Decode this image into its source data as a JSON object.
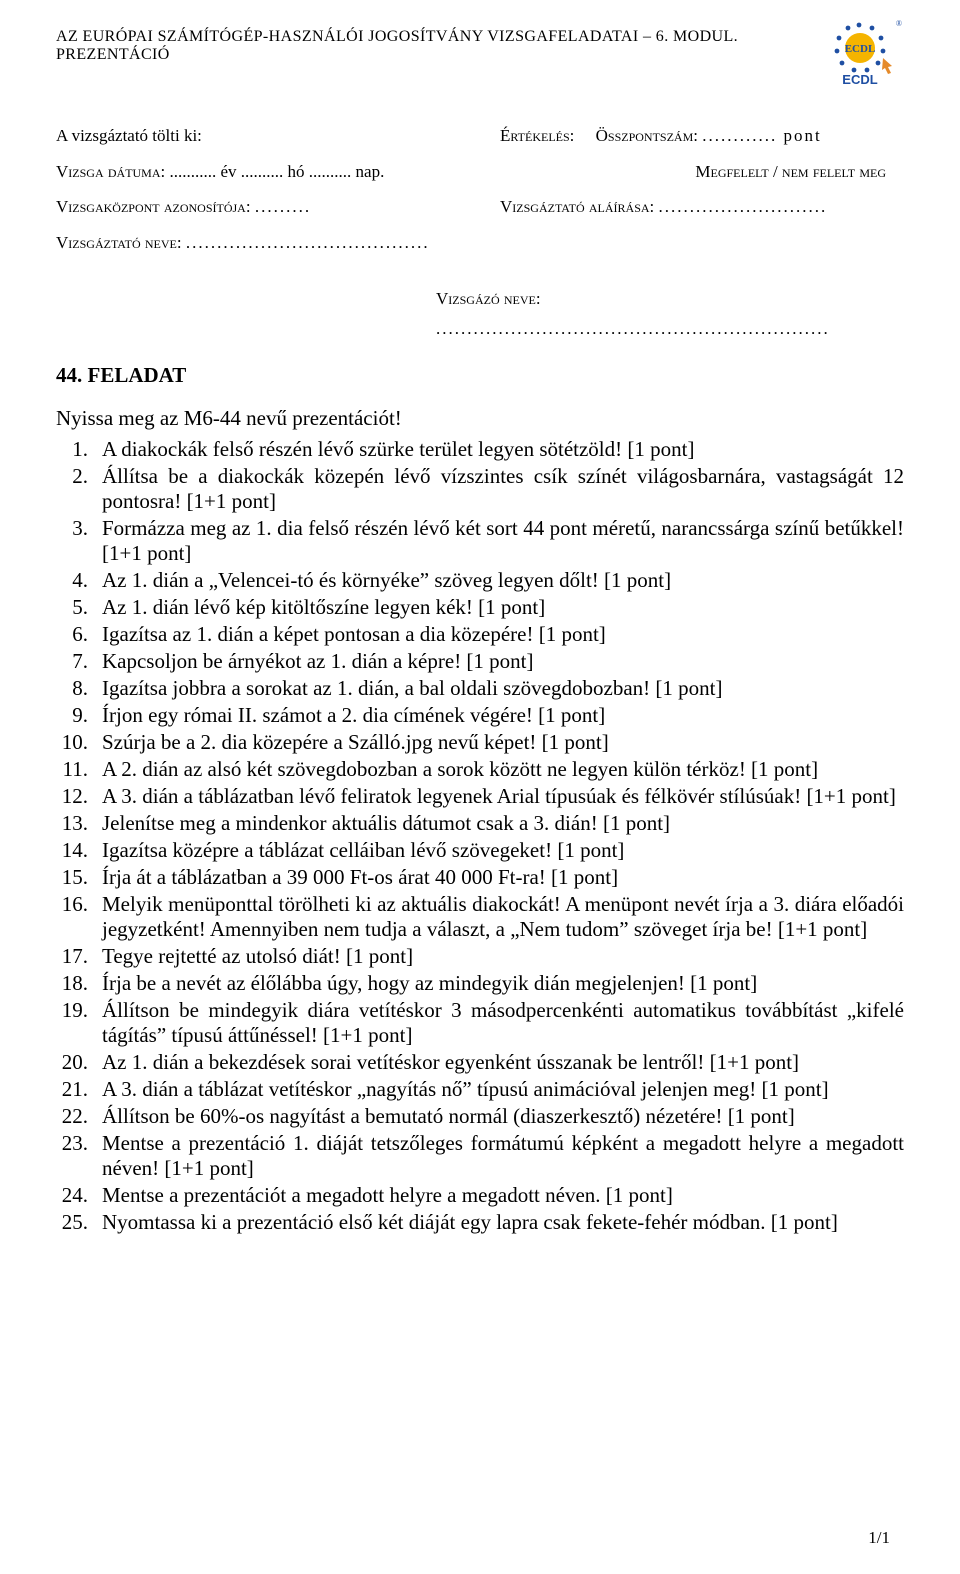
{
  "header": {
    "title": "AZ EURÓPAI SZÁMÍTÓGÉP-HASZNÁLÓI JOGOSÍTVÁNY VIZSGAFELADATAI – 6. MODUL. PREZENTÁCIÓ",
    "logo_label": "ECDL"
  },
  "meta_left": {
    "proctor_fills": "A vizsgáztató tölti ki:",
    "exam_date_label": "Vizsga dátuma:",
    "exam_date_tail": "........... év .......... hó .......... nap.",
    "center_label": "Vizsgaközpont azonosítója:",
    "center_dots": ".........",
    "proctor_label": "Vizsgáztató neve:",
    "proctor_dots": "......................................."
  },
  "meta_right": {
    "eval_label": "Értékelés:",
    "total_label": "Összpontszám:",
    "total_dots": "............ pont",
    "passfail": "Megfelelt / nem felelt meg",
    "sig_label": "Vizsgáztató aláírása:",
    "sig_dots": "..........................."
  },
  "examinee": {
    "label": "Vizsgázó neve:",
    "dots": "..............................................................."
  },
  "task": {
    "title": "44. FELADAT",
    "intro": "Nyissa meg az M6-44 nevű prezentációt!",
    "items": [
      "A diakockák felső részén lévő szürke terület legyen sötétzöld! [1 pont]",
      "Állítsa be a diakockák közepén lévő vízszintes csík színét világosbarnára, vastagságát 12 pontosra! [1+1 pont]",
      "Formázza meg az 1. dia felső részén lévő két sort 44 pont méretű, narancssárga színű betűkkel! [1+1 pont]",
      "Az 1. dián a „Velencei-tó és környéke” szöveg legyen dőlt! [1 pont]",
      "Az 1. dián lévő kép kitöltőszíne legyen kék! [1 pont]",
      "Igazítsa az 1. dián a képet pontosan a dia közepére! [1 pont]",
      "Kapcsoljon be árnyékot az 1. dián a képre! [1 pont]",
      "Igazítsa jobbra a sorokat az 1. dián, a bal oldali szövegdobozban! [1 pont]",
      "Írjon egy római II. számot a 2. dia címének végére! [1 pont]",
      "Szúrja be a 2. dia közepére a Szálló.jpg nevű képet! [1 pont]",
      "A 2. dián az alsó két szövegdobozban a sorok között ne legyen külön térköz! [1 pont]",
      "A 3. dián a táblázatban lévő feliratok legyenek Arial típusúak és félkövér stílúsúak! [1+1 pont]",
      "Jelenítse meg a mindenkor aktuális dátumot csak a 3. dián! [1 pont]",
      "Igazítsa középre a táblázat celláiban lévő szövegeket! [1 pont]",
      "Írja át a táblázatban a 39 000 Ft-os árat 40 000 Ft-ra! [1 pont]",
      "Melyik menüponttal törölheti ki az aktuális diakockát! A menüpont nevét írja a 3. diára előadói jegyzetként! Amennyiben nem tudja a választ, a „Nem tudom” szöveget írja be! [1+1 pont]",
      "Tegye rejtetté az utolsó diát! [1 pont]",
      "Írja be a nevét az élőlábba úgy, hogy az mindegyik dián megjelenjen! [1 pont]",
      "Állítson be mindegyik diára vetítéskor 3 másodpercenkénti automatikus továbbítást „kifelé tágítás” típusú áttűnéssel! [1+1 pont]",
      "Az 1. dián a bekezdések sorai vetítéskor egyenként ússzanak be lentről! [1+1 pont]",
      "A 3. dián a táblázat vetítéskor „nagyítás nő” típusú animációval jelenjen meg! [1 pont]",
      "Állítson be 60%-os nagyítást a bemutató normál (diaszerkesztő) nézetére! [1 pont]",
      "Mentse a prezentáció 1. diáját tetszőleges formátumú képként a megadott helyre a megadott néven! [1+1 pont]",
      "Mentse a prezentációt a megadott helyre a megadott néven. [1 pont]",
      "Nyomtassa ki a prezentáció első két diáját egy lapra csak fekete-fehér módban. [1 pont]"
    ]
  },
  "footer": {
    "page": "1/1"
  },
  "colors": {
    "logo_blue": "#1f4fa3",
    "logo_gold": "#f5b400",
    "cursor": "#e58a2a",
    "text": "#000000",
    "background": "#ffffff"
  }
}
